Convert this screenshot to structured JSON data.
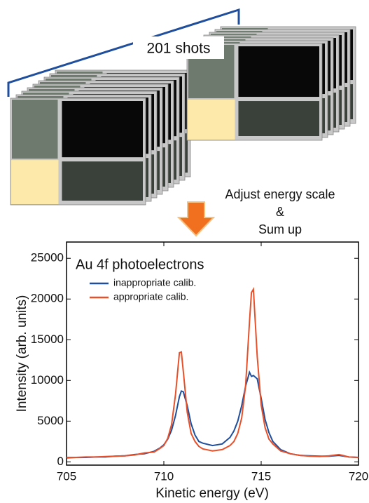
{
  "illustration": {
    "label": "201 shots",
    "arrow_text": [
      "Adjust  energy scale",
      "&",
      "Sum up"
    ]
  },
  "chart_data": {
    "type": "line",
    "title": "Au 4f photoelectrons",
    "x_label": "Kinetic energy (eV)",
    "y_label": "Intensity (arb. units)",
    "xlim": [
      705,
      720
    ],
    "xticks": [
      705,
      710,
      715,
      720
    ],
    "ylim": [
      -400,
      27000
    ],
    "yticks": [
      0,
      5000,
      10000,
      15000,
      20000,
      25000
    ],
    "legend": "upper left",
    "x": [
      705,
      705.5,
      706,
      706.5,
      707,
      707.5,
      708,
      708.5,
      709,
      709.5,
      709.8,
      710.0,
      710.2,
      710.4,
      710.6,
      710.8,
      710.9,
      711.0,
      711.2,
      711.4,
      711.6,
      711.8,
      712.0,
      712.5,
      713.0,
      713.4,
      713.6,
      713.8,
      714.0,
      714.2,
      714.4,
      714.5,
      714.6,
      714.8,
      715.0,
      715.2,
      715.4,
      715.6,
      716.0,
      716.5,
      717.0,
      717.5,
      718.0,
      718.5,
      719.0,
      719.5,
      720
    ],
    "series": [
      {
        "name": "inappropriate calib.",
        "color": "#1f4e9c",
        "values": [
          500,
          550,
          550,
          600,
          600,
          700,
          750,
          900,
          1000,
          1300,
          1700,
          2100,
          2800,
          3900,
          5700,
          8000,
          8700,
          8600,
          6900,
          4700,
          3300,
          2500,
          2300,
          2000,
          2200,
          3000,
          3800,
          5000,
          6900,
          9300,
          11000,
          10500,
          10600,
          10200,
          7800,
          5200,
          3600,
          2500,
          1500,
          1000,
          800,
          750,
          700,
          700,
          800,
          600,
          550
        ]
      },
      {
        "name": "appropriate calib.",
        "color": "#e8502a",
        "values": [
          550,
          550,
          600,
          600,
          650,
          700,
          750,
          850,
          1100,
          1200,
          1650,
          2000,
          2900,
          4600,
          8300,
          13400,
          13500,
          11100,
          6100,
          3500,
          2500,
          1900,
          1600,
          1350,
          1500,
          2000,
          2500,
          3500,
          5400,
          9400,
          17200,
          20800,
          21200,
          12900,
          7000,
          4200,
          2800,
          2200,
          1350,
          1000,
          800,
          700,
          650,
          750,
          900,
          600,
          550
        ]
      }
    ]
  }
}
